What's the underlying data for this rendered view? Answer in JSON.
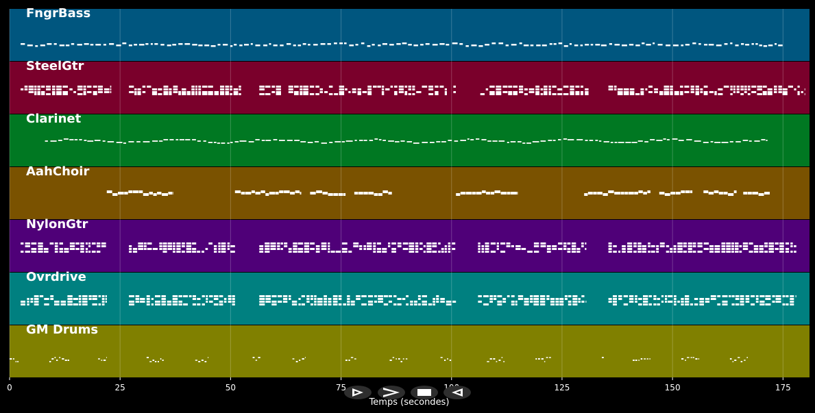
{
  "chart_data": {
    "type": "piano-roll",
    "xlabel": "Temps (secondes)",
    "xlim": [
      0,
      181
    ],
    "x_ticks": [
      0,
      25,
      50,
      75,
      100,
      125,
      150,
      175
    ],
    "grid": true,
    "tracks": [
      {
        "name": "FngrBass",
        "color": "#00567f",
        "pattern": "bass",
        "segments": [
          [
            2.5,
            175
          ]
        ]
      },
      {
        "name": "SteelGtr",
        "color": "#7a002b",
        "pattern": "dense",
        "segments": [
          [
            2.5,
            23
          ],
          [
            27,
            52.5
          ],
          [
            56.5,
            101
          ],
          [
            106.5,
            131
          ],
          [
            135.5,
            180
          ]
        ]
      },
      {
        "name": "Clarinet",
        "color": "#007822",
        "pattern": "line",
        "segments": [
          [
            8,
            171.5
          ]
        ]
      },
      {
        "name": "AahChoir",
        "color": "#7a5200",
        "pattern": "choir",
        "segments": [
          [
            22,
            37
          ],
          [
            51,
            66
          ],
          [
            68,
            76
          ],
          [
            78,
            86.5
          ],
          [
            101,
            115
          ],
          [
            130,
            145
          ],
          [
            147,
            154.5
          ],
          [
            157,
            164.5
          ],
          [
            166,
            172
          ]
        ]
      },
      {
        "name": "NylonGtr",
        "color": "#4f0078",
        "pattern": "chords",
        "segments": [
          [
            2.5,
            22
          ],
          [
            27,
            51
          ],
          [
            56.5,
            101
          ],
          [
            106,
            130.5
          ],
          [
            135.5,
            178
          ]
        ]
      },
      {
        "name": "Ovrdrive",
        "color": "#008080",
        "pattern": "chords",
        "segments": [
          [
            2.5,
            22
          ],
          [
            27,
            51
          ],
          [
            56.5,
            101
          ],
          [
            106,
            130.5
          ],
          [
            135.5,
            178
          ]
        ]
      },
      {
        "name": "GM Drums",
        "color": "#808000",
        "pattern": "drums",
        "segments": [
          [
            0,
            2
          ],
          [
            9,
            13.5
          ],
          [
            20,
            22
          ],
          [
            31,
            35
          ],
          [
            42,
            45
          ],
          [
            55,
            57
          ],
          [
            64,
            67
          ],
          [
            76,
            78.5
          ],
          [
            86,
            90
          ],
          [
            97.5,
            100
          ],
          [
            108,
            112
          ],
          [
            119,
            122.5
          ],
          [
            134,
            134.5
          ],
          [
            141,
            145
          ],
          [
            152,
            156
          ],
          [
            163,
            167
          ]
        ]
      }
    ]
  },
  "controls": [
    {
      "name": "play-button",
      "icon": "play-icon"
    },
    {
      "name": "fast-forward-button",
      "icon": "fast-forward-icon"
    },
    {
      "name": "stop-button",
      "icon": "stop-icon"
    },
    {
      "name": "rewind-button",
      "icon": "rewind-icon"
    }
  ]
}
